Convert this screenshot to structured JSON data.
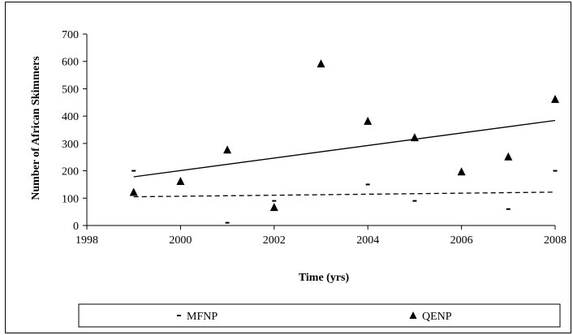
{
  "chart_data": {
    "type": "scatter",
    "xlabel": "Time (yrs)",
    "ylabel": "Number of African Skimmers",
    "xlim": [
      1998,
      2008
    ],
    "ylim": [
      0,
      700
    ],
    "xticks": [
      1998,
      2000,
      2002,
      2004,
      2006,
      2008
    ],
    "yticks": [
      0,
      100,
      200,
      300,
      400,
      500,
      600,
      700
    ],
    "grid": false,
    "legend_position": "bottom",
    "series": [
      {
        "name": "MFNP",
        "marker": "dash",
        "trendline": "dashed",
        "points": [
          {
            "x": 1999,
            "y": 200
          },
          {
            "x": 2001,
            "y": 10
          },
          {
            "x": 2002,
            "y": 90
          },
          {
            "x": 2004,
            "y": 150
          },
          {
            "x": 2005,
            "y": 90
          },
          {
            "x": 2007,
            "y": 60
          },
          {
            "x": 2008,
            "y": 200
          }
        ],
        "trend": {
          "x0": 1999,
          "y0": 105,
          "x1": 2008,
          "y1": 122
        }
      },
      {
        "name": "QENP",
        "marker": "triangle",
        "trendline": "solid",
        "points": [
          {
            "x": 1999,
            "y": 120
          },
          {
            "x": 2000,
            "y": 160
          },
          {
            "x": 2001,
            "y": 275
          },
          {
            "x": 2002,
            "y": 65
          },
          {
            "x": 2003,
            "y": 590
          },
          {
            "x": 2004,
            "y": 380
          },
          {
            "x": 2005,
            "y": 320
          },
          {
            "x": 2006,
            "y": 195
          },
          {
            "x": 2007,
            "y": 250
          },
          {
            "x": 2008,
            "y": 460
          }
        ],
        "trend": {
          "x0": 1999,
          "y0": 178,
          "x1": 2008,
          "y1": 384
        }
      }
    ],
    "colors": {
      "marker": "#000000",
      "line": "#000000"
    }
  }
}
